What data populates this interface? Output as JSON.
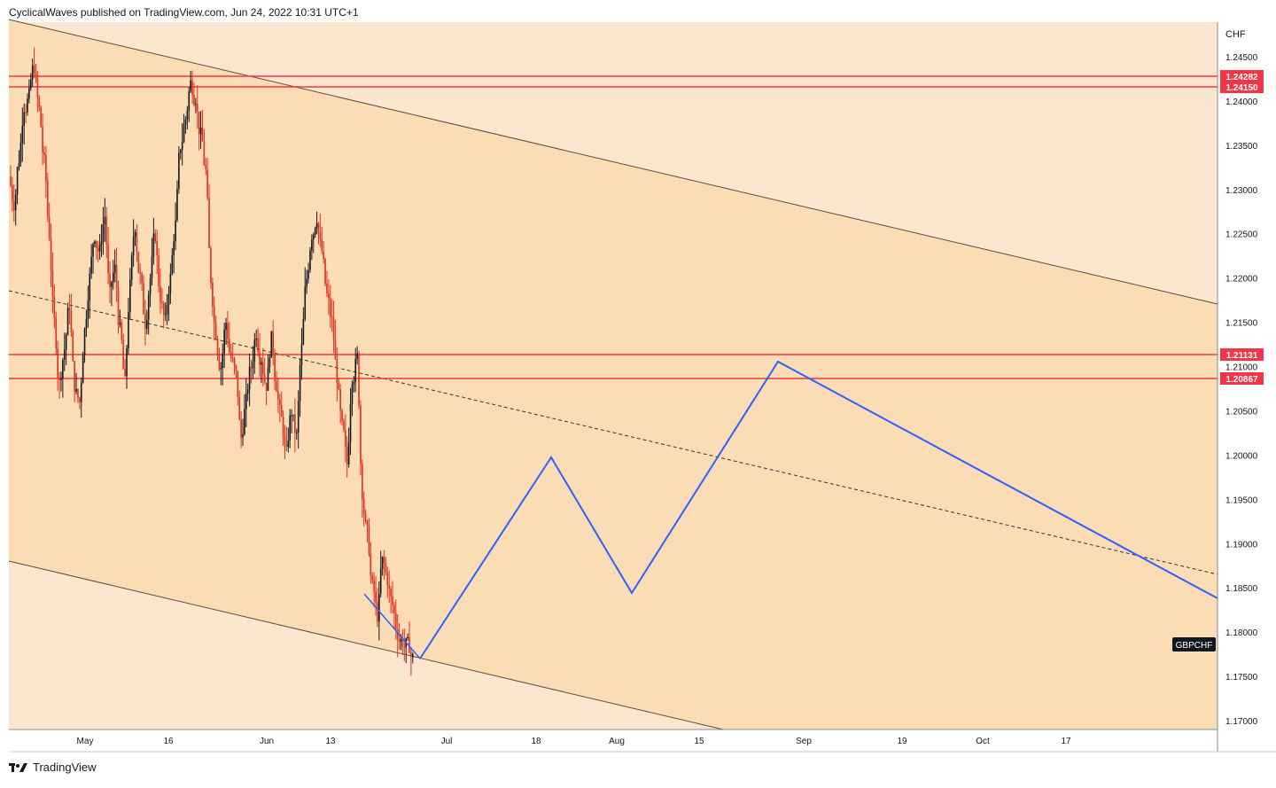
{
  "header": {
    "text": "CyclicalWaves published on TradingView.com, Jun 24, 2022 10:31 UTC+1"
  },
  "footer": {
    "brand": "TradingView"
  },
  "chart_data": {
    "type": "candlestick",
    "symbol": "GBPCHF",
    "currency": "CHF",
    "ylim": [
      1.1685,
      1.2478
    ],
    "y_ticks": [
      "1.24500",
      "1.24000",
      "1.23500",
      "1.23000",
      "1.22500",
      "1.22000",
      "1.21500",
      "1.21000",
      "1.20500",
      "1.20000",
      "1.19500",
      "1.19000",
      "1.18500",
      "1.18000",
      "1.17500",
      "1.17000"
    ],
    "x_ticks": [
      "May",
      "16",
      "Jun",
      "13",
      "Jul",
      "18",
      "Aug",
      "15",
      "Sep",
      "19",
      "Oct",
      "17"
    ],
    "horizontal_levels": [
      {
        "label": "1.24282",
        "value": 1.24282
      },
      {
        "label": "1.24150",
        "value": 1.2415
      },
      {
        "label": "1.21131",
        "value": 1.21131
      },
      {
        "label": "1.20867",
        "value": 1.20867
      }
    ],
    "candles_close": [
      1.2285,
      1.2335,
      1.2395,
      1.2405,
      1.244,
      1.239,
      1.233,
      1.225,
      1.215,
      1.208,
      1.212,
      1.217,
      1.208,
      1.206,
      1.214,
      1.22,
      1.225,
      1.223,
      1.227,
      1.218,
      1.221,
      1.214,
      1.208,
      1.219,
      1.226,
      1.22,
      1.215,
      1.22,
      1.225,
      1.218,
      1.215,
      1.22,
      1.226,
      1.235,
      1.238,
      1.242,
      1.2405,
      1.236,
      1.232,
      1.22,
      1.214,
      1.21,
      1.215,
      1.211,
      1.209,
      1.202,
      1.206,
      1.21,
      1.214,
      1.211,
      1.208,
      1.213,
      1.208,
      1.204,
      1.2,
      1.205,
      1.202,
      1.212,
      1.22,
      1.225,
      1.227,
      1.223,
      1.218,
      1.215,
      1.209,
      1.203,
      1.199,
      1.209,
      1.211,
      1.196,
      1.191,
      1.185,
      1.182,
      1.188,
      1.186,
      1.183,
      1.18,
      1.179,
      1.1785,
      1.177
    ]
  },
  "series_label": "GBPCHF"
}
